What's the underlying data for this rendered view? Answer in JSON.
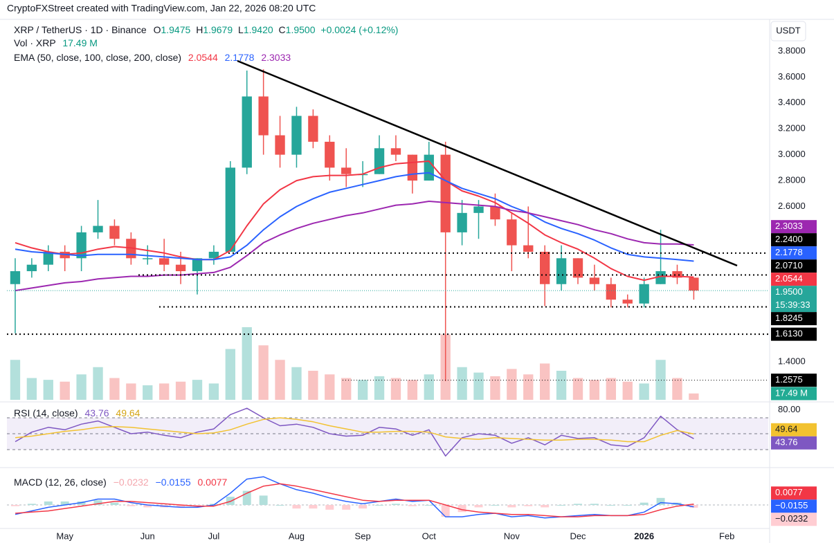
{
  "header": {
    "credit": "CryptoFXStreet created with TradingView.com, Jan 22, 2026 08:20 UTC",
    "currency": "USDT"
  },
  "chart_data": [
    {
      "type": "candlestick",
      "symbol": "XRP / TetherUS · 1D · Binance",
      "ohlc_legend": [
        {
          "key": "O",
          "value": "1.9475"
        },
        {
          "key": "H",
          "value": "1.9679"
        },
        {
          "key": "L",
          "value": "1.9420"
        },
        {
          "key": "C",
          "value": "1.9500"
        }
      ],
      "change": "+0.0024 (+0.12%)",
      "countdown": "15:39:33",
      "categories": [
        null,
        null,
        null,
        "May",
        null,
        null,
        null,
        null,
        "Jun",
        null,
        null,
        null,
        "Jul",
        null,
        null,
        null,
        null,
        "Aug",
        null,
        null,
        null,
        "Sep",
        null,
        null,
        null,
        "Oct",
        null,
        null,
        null,
        null,
        "Nov",
        null,
        null,
        null,
        "Dec",
        null,
        null,
        null,
        "2026",
        null,
        null,
        null,
        null,
        "Feb",
        null,
        null
      ],
      "open": [
        2.0,
        2.1,
        2.15,
        2.25,
        2.2,
        2.4,
        2.45,
        2.35,
        2.2,
        2.2,
        2.15,
        2.1,
        2.2,
        2.25,
        2.9,
        3.45,
        3.15,
        3.0,
        3.3,
        3.1,
        2.9,
        2.85,
        2.85,
        3.05,
        3.0,
        2.8,
        3.0,
        2.4,
        2.55,
        2.6,
        2.5,
        2.3,
        2.25,
        2.0,
        2.2,
        2.05,
        2.0,
        1.88,
        1.85,
        2.0,
        2.1,
        2.05,
        null,
        null,
        null,
        null
      ],
      "high": [
        2.2,
        2.2,
        2.3,
        2.3,
        2.45,
        2.65,
        2.5,
        2.4,
        2.3,
        2.35,
        2.25,
        2.2,
        2.3,
        2.95,
        3.65,
        3.66,
        3.3,
        3.37,
        3.35,
        3.15,
        3.05,
        2.95,
        3.15,
        3.15,
        3.0,
        3.1,
        3.1,
        2.65,
        2.65,
        2.7,
        2.55,
        2.6,
        2.3,
        2.3,
        2.2,
        2.15,
        2.05,
        1.92,
        2.05,
        2.42,
        2.15,
        2.05,
        null,
        null,
        null,
        null
      ],
      "low": [
        1.62,
        2.05,
        2.1,
        2.1,
        2.1,
        2.35,
        2.3,
        2.15,
        2.15,
        2.1,
        2.0,
        1.92,
        2.15,
        2.25,
        2.85,
        3.0,
        2.9,
        2.9,
        3.05,
        2.8,
        2.75,
        2.75,
        2.85,
        2.95,
        2.7,
        2.8,
        1.25,
        2.3,
        2.35,
        2.45,
        2.1,
        2.2,
        1.83,
        1.95,
        2.0,
        1.95,
        1.82,
        1.82,
        1.82,
        2.0,
        2.0,
        1.88,
        null,
        null,
        null,
        null
      ],
      "close": [
        2.1,
        2.15,
        2.25,
        2.2,
        2.4,
        2.45,
        2.35,
        2.2,
        2.2,
        2.15,
        2.1,
        2.2,
        2.25,
        2.9,
        3.45,
        3.15,
        3.0,
        3.3,
        3.1,
        2.9,
        2.85,
        2.85,
        3.05,
        3.0,
        2.8,
        3.0,
        2.4,
        2.55,
        2.6,
        2.5,
        2.3,
        2.25,
        2.0,
        2.2,
        2.05,
        2.0,
        1.88,
        1.85,
        2.0,
        2.1,
        2.05,
        1.95,
        null,
        null,
        null,
        null
      ],
      "close_label": "1.9500",
      "up_color": "#26a69a",
      "down_color": "#ef5350",
      "ylim": [
        1.106,
        4.035
      ],
      "yticks": [
        {
          "value": 1.4,
          "label": "1.4000"
        },
        {
          "value": 2.6,
          "label": "2.6000"
        },
        {
          "value": 2.8,
          "label": "2.8000"
        },
        {
          "value": 3.0,
          "label": "3.0000"
        },
        {
          "value": 3.2,
          "label": "3.2000"
        },
        {
          "value": 3.4,
          "label": "3.4000"
        },
        {
          "value": 3.6,
          "label": "3.6000"
        },
        {
          "value": 3.8,
          "label": "3.8000"
        }
      ],
      "grid": false,
      "ema_label": "EMA (50, close, 100, close, 200, close)",
      "series": [
        {
          "color": "#f23645",
          "last_label": "2.0544",
          "values": [
            2.32,
            2.28,
            2.25,
            2.23,
            2.24,
            2.27,
            2.29,
            2.28,
            2.26,
            2.24,
            2.21,
            2.19,
            2.19,
            2.26,
            2.45,
            2.62,
            2.73,
            2.8,
            2.83,
            2.84,
            2.84,
            2.85,
            2.9,
            2.93,
            2.94,
            2.95,
            2.8,
            2.72,
            2.68,
            2.63,
            2.55,
            2.47,
            2.38,
            2.32,
            2.27,
            2.2,
            2.12,
            2.06,
            2.03,
            2.06,
            2.06,
            2.0544,
            null,
            null,
            null,
            null
          ]
        },
        {
          "color": "#2962ff",
          "last_label": "2.1778",
          "values": [
            2.27,
            2.25,
            2.24,
            2.23,
            2.22,
            2.23,
            2.23,
            2.23,
            2.22,
            2.21,
            2.2,
            2.19,
            2.19,
            2.21,
            2.3,
            2.42,
            2.52,
            2.6,
            2.66,
            2.71,
            2.74,
            2.77,
            2.8,
            2.83,
            2.85,
            2.86,
            2.8,
            2.74,
            2.7,
            2.66,
            2.6,
            2.55,
            2.48,
            2.43,
            2.39,
            2.34,
            2.28,
            2.23,
            2.21,
            2.2,
            2.19,
            2.1778,
            null,
            null,
            null,
            null
          ]
        },
        {
          "color": "#9c27b0",
          "last_label": "2.3033",
          "values": [
            1.95,
            1.97,
            1.99,
            2.01,
            2.02,
            2.04,
            2.05,
            2.06,
            2.06,
            2.07,
            2.07,
            2.08,
            2.09,
            2.13,
            2.22,
            2.32,
            2.38,
            2.43,
            2.47,
            2.5,
            2.53,
            2.55,
            2.58,
            2.61,
            2.62,
            2.64,
            2.63,
            2.62,
            2.61,
            2.6,
            2.57,
            2.55,
            2.52,
            2.49,
            2.46,
            2.42,
            2.39,
            2.35,
            2.32,
            2.31,
            2.31,
            2.3033,
            null,
            null,
            null,
            null
          ]
        }
      ],
      "volume": {
        "label": "Vol · XRP",
        "last_label": "17.49 M",
        "color": "#22ab94",
        "values": [
          110,
          60,
          55,
          50,
          70,
          90,
          60,
          45,
          40,
          45,
          50,
          55,
          45,
          140,
          200,
          150,
          110,
          90,
          80,
          70,
          60,
          55,
          65,
          60,
          55,
          70,
          180,
          90,
          75,
          65,
          85,
          70,
          100,
          80,
          60,
          55,
          60,
          50,
          45,
          110,
          60,
          17.49,
          null,
          null,
          null,
          null
        ]
      },
      "levels": [
        {
          "value": 2.24,
          "label": "2.2400"
        },
        {
          "value": 2.071,
          "label": "2.0710"
        },
        {
          "value": 1.8245,
          "label": "1.8245"
        },
        {
          "value": 1.613,
          "label": "1.6130"
        },
        {
          "value": 1.2575,
          "label": "1.2575"
        }
      ],
      "level_color": "#000000"
    },
    {
      "type": "line",
      "title": "RSI (14, close)",
      "ylim": [
        12.6,
        82.2
      ],
      "yticks": [
        {
          "value": 80,
          "label": "80.00"
        }
      ],
      "guides": [
        70,
        50,
        30
      ],
      "band_color": "#7e57c2",
      "series": [
        {
          "color": "#7e57c2",
          "last_label": "43.76",
          "values": [
            40,
            52,
            58,
            55,
            62,
            66,
            58,
            50,
            52,
            48,
            45,
            52,
            56,
            74,
            82,
            70,
            60,
            62,
            58,
            50,
            47,
            48,
            58,
            56,
            48,
            55,
            22,
            45,
            50,
            48,
            38,
            45,
            36,
            48,
            44,
            45,
            36,
            34,
            45,
            72,
            55,
            43.76,
            null,
            null,
            null,
            null
          ]
        },
        {
          "color": "#f2c230",
          "last_label": "49.64",
          "values": [
            45,
            47,
            50,
            53,
            55,
            58,
            59,
            58,
            56,
            54,
            52,
            50,
            51,
            55,
            62,
            68,
            70,
            68,
            65,
            60,
            56,
            52,
            52,
            53,
            53,
            52,
            46,
            44,
            43,
            45,
            44,
            43,
            42,
            42,
            43,
            43,
            42,
            40,
            40,
            48,
            54,
            49.64,
            null,
            null,
            null,
            null
          ]
        }
      ]
    },
    {
      "type": "combo",
      "title": "MACD (12, 26, close)",
      "ylim": [
        -0.176,
        0.294
      ],
      "histogram": {
        "last_label": "−0.0232",
        "up_color": "#b2dfdb",
        "down_color": "#ffcdd2",
        "values": [
          -0.01,
          0.01,
          0.03,
          0.03,
          0.03,
          0.04,
          0.02,
          -0.01,
          -0.02,
          -0.02,
          -0.02,
          -0.01,
          0.01,
          0.07,
          0.12,
          0.08,
          0,
          -0.03,
          -0.03,
          -0.04,
          -0.04,
          -0.03,
          0,
          0.01,
          -0.01,
          0,
          -0.1,
          -0.06,
          -0.02,
          0,
          -0.02,
          -0.01,
          -0.02,
          0,
          0.01,
          0.01,
          0,
          0,
          0.02,
          0.06,
          0.02,
          -0.0232,
          null,
          null,
          null,
          null
        ]
      },
      "series": [
        {
          "color": "#2962ff",
          "last_label": "−0.0155",
          "values": [
            -0.08,
            -0.05,
            -0.02,
            0,
            0.02,
            0.05,
            0.05,
            0.02,
            0,
            -0.01,
            -0.02,
            -0.02,
            0,
            0.1,
            0.22,
            0.24,
            0.18,
            0.13,
            0.1,
            0.06,
            0.03,
            0.01,
            0.03,
            0.05,
            0.03,
            0.04,
            -0.1,
            -0.1,
            -0.08,
            -0.07,
            -0.1,
            -0.09,
            -0.11,
            -0.1,
            -0.09,
            -0.08,
            -0.09,
            -0.09,
            -0.06,
            0.02,
            0.01,
            -0.0155,
            null,
            null,
            null,
            null
          ]
        },
        {
          "color": "#f23645",
          "last_label": "0.0077",
          "values": [
            -0.07,
            -0.06,
            -0.05,
            -0.03,
            -0.01,
            0.01,
            0.03,
            0.03,
            0.02,
            0.01,
            0,
            -0.01,
            -0.01,
            0.03,
            0.1,
            0.16,
            0.18,
            0.16,
            0.13,
            0.1,
            0.07,
            0.04,
            0.03,
            0.04,
            0.04,
            0.04,
            0,
            -0.04,
            -0.06,
            -0.07,
            -0.08,
            -0.08,
            -0.09,
            -0.1,
            -0.1,
            -0.09,
            -0.09,
            -0.09,
            -0.08,
            -0.04,
            -0.01,
            0.0077,
            null,
            null,
            null,
            null
          ]
        }
      ]
    }
  ]
}
